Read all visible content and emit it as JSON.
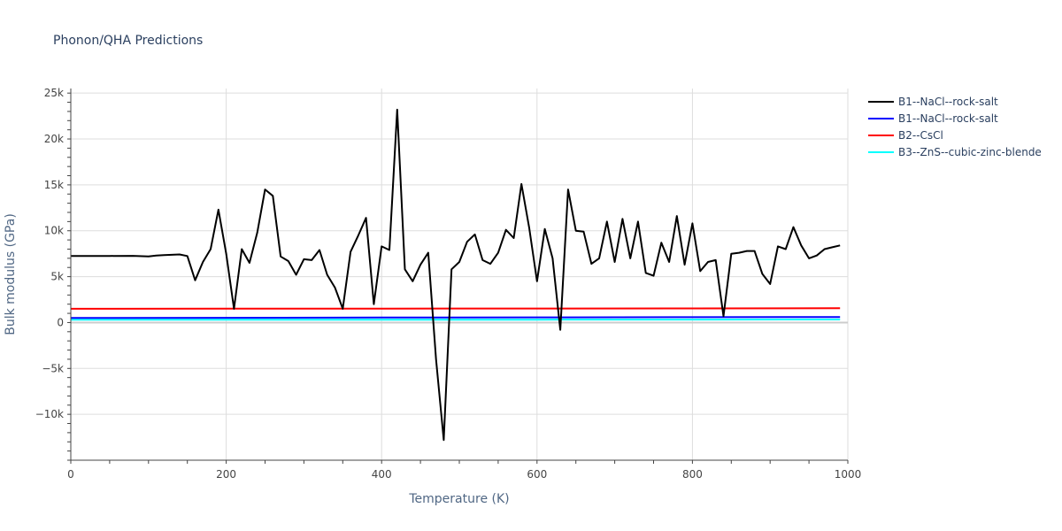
{
  "chart_data": {
    "type": "line",
    "title": "Phonon/QHA Predictions",
    "xlabel": "Temperature (K)",
    "ylabel": "Bulk modulus (GPa)",
    "xlim": [
      0,
      1000
    ],
    "ylim": [
      -15000,
      25500
    ],
    "x_ticks": [
      0,
      200,
      400,
      600,
      800,
      1000
    ],
    "x_tick_labels": [
      "0",
      "200",
      "400",
      "600",
      "800",
      "1000"
    ],
    "y_ticks": [
      -10000,
      -5000,
      0,
      5000,
      10000,
      15000,
      20000,
      25000
    ],
    "y_tick_labels": [
      "−10k",
      "−5k",
      "0",
      "5k",
      "10k",
      "15k",
      "20k",
      "25k"
    ],
    "grid": true,
    "legend_position": "right",
    "series": [
      {
        "name": "B1--NaCl--rock-salt",
        "color": "#000000",
        "points": [
          [
            0,
            7250
          ],
          [
            50,
            7260
          ],
          [
            80,
            7270
          ],
          [
            100,
            7200
          ],
          [
            110,
            7300
          ],
          [
            120,
            7350
          ],
          [
            130,
            7380
          ],
          [
            140,
            7420
          ],
          [
            150,
            7250
          ],
          [
            160,
            4600
          ],
          [
            170,
            6600
          ],
          [
            180,
            8000
          ],
          [
            190,
            12300
          ],
          [
            200,
            7500
          ],
          [
            210,
            1500
          ],
          [
            220,
            8000
          ],
          [
            230,
            6500
          ],
          [
            240,
            9800
          ],
          [
            250,
            14500
          ],
          [
            260,
            13800
          ],
          [
            270,
            7200
          ],
          [
            280,
            6700
          ],
          [
            290,
            5200
          ],
          [
            300,
            6900
          ],
          [
            310,
            6800
          ],
          [
            320,
            7900
          ],
          [
            330,
            5200
          ],
          [
            340,
            3800
          ],
          [
            350,
            1500
          ],
          [
            360,
            7700
          ],
          [
            370,
            9500
          ],
          [
            380,
            11400
          ],
          [
            390,
            2000
          ],
          [
            400,
            8300
          ],
          [
            410,
            7900
          ],
          [
            420,
            23200
          ],
          [
            430,
            5800
          ],
          [
            440,
            4500
          ],
          [
            450,
            6300
          ],
          [
            460,
            7600
          ],
          [
            470,
            -4000
          ],
          [
            480,
            -12800
          ],
          [
            490,
            5800
          ],
          [
            500,
            6600
          ],
          [
            510,
            8800
          ],
          [
            520,
            9600
          ],
          [
            530,
            6800
          ],
          [
            540,
            6400
          ],
          [
            550,
            7600
          ],
          [
            560,
            10100
          ],
          [
            570,
            9200
          ],
          [
            580,
            15100
          ],
          [
            590,
            10300
          ],
          [
            600,
            4500
          ],
          [
            610,
            10200
          ],
          [
            620,
            7000
          ],
          [
            630,
            -800
          ],
          [
            640,
            14500
          ],
          [
            650,
            10000
          ],
          [
            660,
            9900
          ],
          [
            670,
            6400
          ],
          [
            680,
            7000
          ],
          [
            690,
            11000
          ],
          [
            700,
            6600
          ],
          [
            710,
            11300
          ],
          [
            720,
            7000
          ],
          [
            730,
            11000
          ],
          [
            740,
            5400
          ],
          [
            750,
            5100
          ],
          [
            760,
            8700
          ],
          [
            770,
            6600
          ],
          [
            780,
            11600
          ],
          [
            790,
            6300
          ],
          [
            800,
            10800
          ],
          [
            810,
            5600
          ],
          [
            820,
            6600
          ],
          [
            830,
            6800
          ],
          [
            840,
            700
          ],
          [
            850,
            7500
          ],
          [
            860,
            7600
          ],
          [
            870,
            7800
          ],
          [
            880,
            7800
          ],
          [
            890,
            5300
          ],
          [
            900,
            4200
          ],
          [
            910,
            8300
          ],
          [
            920,
            8000
          ],
          [
            930,
            10400
          ],
          [
            940,
            8400
          ],
          [
            950,
            7000
          ],
          [
            960,
            7300
          ],
          [
            970,
            8000
          ],
          [
            980,
            8200
          ],
          [
            990,
            8400
          ]
        ]
      },
      {
        "name": "B1--NaCl--rock-salt",
        "color": "#0000ff",
        "points": [
          [
            0,
            500
          ],
          [
            200,
            520
          ],
          [
            400,
            540
          ],
          [
            600,
            560
          ],
          [
            800,
            580
          ],
          [
            990,
            600
          ]
        ]
      },
      {
        "name": "B2--CsCl",
        "color": "#ff0000",
        "points": [
          [
            0,
            1500
          ],
          [
            200,
            1510
          ],
          [
            400,
            1520
          ],
          [
            600,
            1530
          ],
          [
            800,
            1540
          ],
          [
            990,
            1560
          ]
        ]
      },
      {
        "name": "B3--ZnS--cubic-zinc-blende",
        "color": "#00ffff",
        "points": [
          [
            0,
            300
          ],
          [
            200,
            305
          ],
          [
            400,
            310
          ],
          [
            600,
            315
          ],
          [
            800,
            320
          ],
          [
            990,
            330
          ]
        ]
      }
    ]
  }
}
